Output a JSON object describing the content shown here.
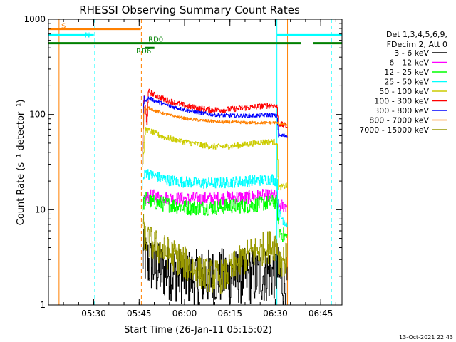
{
  "chart_data": {
    "type": "line",
    "title": "RHESSI Observing Summary Count Rates",
    "xlabel": "Start Time (26-Jan-11 05:15:02)",
    "ylabel": "Count Rate (s⁻¹ detector⁻¹)",
    "yscale": "log",
    "ylim": [
      1,
      1000
    ],
    "xlim_minutes": [
      0,
      97
    ],
    "grid": false,
    "y_ticks": [
      {
        "value": 1,
        "label": "1"
      },
      {
        "value": 10,
        "label": "10"
      },
      {
        "value": 100,
        "label": "100"
      },
      {
        "value": 1000,
        "label": "1000"
      }
    ],
    "x_ticks": [
      {
        "minute": 14.97,
        "label": "05:30"
      },
      {
        "minute": 29.97,
        "label": "05:45"
      },
      {
        "minute": 44.97,
        "label": "06:00"
      },
      {
        "minute": 59.97,
        "label": "06:15"
      },
      {
        "minute": 74.97,
        "label": "06:30"
      },
      {
        "minute": 89.97,
        "label": "06:45"
      }
    ],
    "legend": {
      "placement": "right",
      "header": [
        "Det 1,3,4,5,6,9,",
        "FDecim 2, Att 0"
      ]
    },
    "flags": [
      {
        "label": "S",
        "color": "#ff8000",
        "segments": [
          [
            0,
            30.5
          ]
        ],
        "level": 790
      },
      {
        "label": "N",
        "color": "#00ffff",
        "segments": [
          [
            0,
            15
          ],
          [
            75.5,
            97
          ]
        ],
        "level": 680
      },
      {
        "label": "RD0",
        "color": "#008000",
        "segments": [
          [
            0,
            75.5
          ],
          [
            75.5,
            83.5
          ],
          [
            87.5,
            97
          ]
        ],
        "level": 560
      },
      {
        "label": "RD6",
        "color": "#008000",
        "segments": [
          [
            32,
            35
          ]
        ],
        "level": 500
      }
    ],
    "vertical_markers": [
      {
        "minute": 3.5,
        "color": "#ff8000",
        "style": "solid"
      },
      {
        "minute": 15.3,
        "color": "#00ffff",
        "style": "dashed"
      },
      {
        "minute": 30.7,
        "color": "#ff8000",
        "style": "dashed"
      },
      {
        "minute": 75.5,
        "color": "#00ffff",
        "style": "solid"
      },
      {
        "minute": 79,
        "color": "#ff8000",
        "style": "solid"
      },
      {
        "minute": 93.5,
        "color": "#00ffff",
        "style": "dashed"
      }
    ],
    "series": [
      {
        "name": "3 - 6 keV",
        "color": "#000000",
        "points": [
          [
            31,
            3.2
          ],
          [
            34,
            2.6
          ],
          [
            36,
            2.3
          ],
          [
            40,
            2.2
          ],
          [
            45,
            2.0
          ],
          [
            50,
            1.9
          ],
          [
            55,
            2.0
          ],
          [
            60,
            2.0
          ],
          [
            65,
            2.0
          ],
          [
            70,
            2.0
          ],
          [
            74,
            2.2
          ],
          [
            75.5,
            2.3
          ],
          [
            77,
            1.8
          ],
          [
            79,
            1.6
          ]
        ],
        "noise": 0.3
      },
      {
        "name": "6 - 12 keV",
        "color": "#ff00ff",
        "points": [
          [
            31,
            11
          ],
          [
            32,
            13
          ],
          [
            34,
            14
          ],
          [
            38,
            13.5
          ],
          [
            42,
            13
          ],
          [
            46,
            13
          ],
          [
            50,
            13
          ],
          [
            55,
            13
          ],
          [
            60,
            13.5
          ],
          [
            65,
            13.5
          ],
          [
            70,
            14
          ],
          [
            74,
            14
          ],
          [
            75.5,
            13.5
          ],
          [
            76,
            11
          ],
          [
            79,
            11
          ]
        ],
        "noise": 0.07
      },
      {
        "name": "12 - 25 keV",
        "color": "#00ff00",
        "points": [
          [
            31,
            11
          ],
          [
            32,
            13
          ],
          [
            34,
            12
          ],
          [
            38,
            11.5
          ],
          [
            42,
            11
          ],
          [
            46,
            10.5
          ],
          [
            50,
            10.5
          ],
          [
            55,
            10.5
          ],
          [
            60,
            11
          ],
          [
            65,
            11
          ],
          [
            70,
            11.5
          ],
          [
            74,
            12
          ],
          [
            75.5,
            12
          ],
          [
            76,
            6
          ],
          [
            79,
            5
          ]
        ],
        "noise": 0.08
      },
      {
        "name": "25 - 50 keV",
        "color": "#00ffff",
        "points": [
          [
            31,
            19
          ],
          [
            32,
            25
          ],
          [
            34,
            23
          ],
          [
            38,
            21
          ],
          [
            42,
            20
          ],
          [
            46,
            19.5
          ],
          [
            50,
            19
          ],
          [
            55,
            19
          ],
          [
            60,
            19.5
          ],
          [
            65,
            20
          ],
          [
            70,
            20.5
          ],
          [
            74,
            21
          ],
          [
            75.5,
            20
          ],
          [
            76,
            9
          ],
          [
            79,
            7
          ]
        ],
        "noise": 0.06
      },
      {
        "name": "50 - 100 keV",
        "color": "#cccc00",
        "points": [
          [
            31,
            28
          ],
          [
            32,
            70
          ],
          [
            33,
            68
          ],
          [
            35,
            64
          ],
          [
            38,
            58
          ],
          [
            42,
            54
          ],
          [
            46,
            51
          ],
          [
            50,
            48
          ],
          [
            54,
            46
          ],
          [
            58,
            46
          ],
          [
            62,
            47
          ],
          [
            66,
            49
          ],
          [
            70,
            51
          ],
          [
            74,
            52
          ],
          [
            75.5,
            51
          ],
          [
            76,
            17
          ],
          [
            79,
            18
          ]
        ],
        "noise": 0.03
      },
      {
        "name": "100 - 300 keV",
        "color": "#ff0000",
        "points": [
          [
            31,
            40
          ],
          [
            31.5,
            160
          ],
          [
            32.5,
            80
          ],
          [
            33,
            175
          ],
          [
            35,
            160
          ],
          [
            38,
            145
          ],
          [
            42,
            132
          ],
          [
            46,
            122
          ],
          [
            50,
            115
          ],
          [
            54,
            112
          ],
          [
            58,
            112
          ],
          [
            62,
            115
          ],
          [
            66,
            118
          ],
          [
            70,
            122
          ],
          [
            74,
            125
          ],
          [
            75.5,
            120
          ],
          [
            76,
            80
          ],
          [
            79,
            75
          ]
        ],
        "noise": 0.03
      },
      {
        "name": "300 - 800 keV",
        "color": "#0000ff",
        "points": [
          [
            31,
            30
          ],
          [
            31.5,
            150
          ],
          [
            32.5,
            140
          ],
          [
            33,
            150
          ],
          [
            35,
            140
          ],
          [
            38,
            128
          ],
          [
            42,
            118
          ],
          [
            46,
            110
          ],
          [
            50,
            104
          ],
          [
            54,
            100
          ],
          [
            58,
            98
          ],
          [
            62,
            97
          ],
          [
            66,
            97
          ],
          [
            70,
            98
          ],
          [
            74,
            99
          ],
          [
            75.5,
            95
          ],
          [
            76,
            60
          ],
          [
            79,
            60
          ]
        ],
        "noise": 0.02
      },
      {
        "name": "800 - 7000 keV",
        "color": "#ff8000",
        "points": [
          [
            31,
            30
          ],
          [
            31.5,
            120
          ],
          [
            32.5,
            110
          ],
          [
            33,
            118
          ],
          [
            35,
            110
          ],
          [
            38,
            102
          ],
          [
            42,
            95
          ],
          [
            46,
            90
          ],
          [
            50,
            87
          ],
          [
            54,
            85
          ],
          [
            58,
            83
          ],
          [
            62,
            83
          ],
          [
            66,
            82
          ],
          [
            70,
            82
          ],
          [
            74,
            82
          ],
          [
            75.5,
            82
          ],
          [
            76,
            80
          ],
          [
            79,
            78
          ]
        ],
        "noise": 0.015
      },
      {
        "name": "7000 - 15000 keV",
        "color": "#999900",
        "points": [
          [
            31,
            6.5
          ],
          [
            32,
            5
          ],
          [
            33,
            4.6
          ],
          [
            35,
            4.2
          ],
          [
            38,
            3.7
          ],
          [
            42,
            3.2
          ],
          [
            46,
            2.6
          ],
          [
            50,
            2.2
          ],
          [
            54,
            2.0
          ],
          [
            58,
            2.0
          ],
          [
            62,
            2.6
          ],
          [
            66,
            3.3
          ],
          [
            70,
            3.8
          ],
          [
            74,
            4.2
          ],
          [
            75.5,
            4.6
          ],
          [
            76,
            3
          ],
          [
            79,
            3
          ]
        ],
        "noise": 0.18
      }
    ]
  },
  "footer": {
    "timestamp": "13-Oct-2021 22:43"
  }
}
